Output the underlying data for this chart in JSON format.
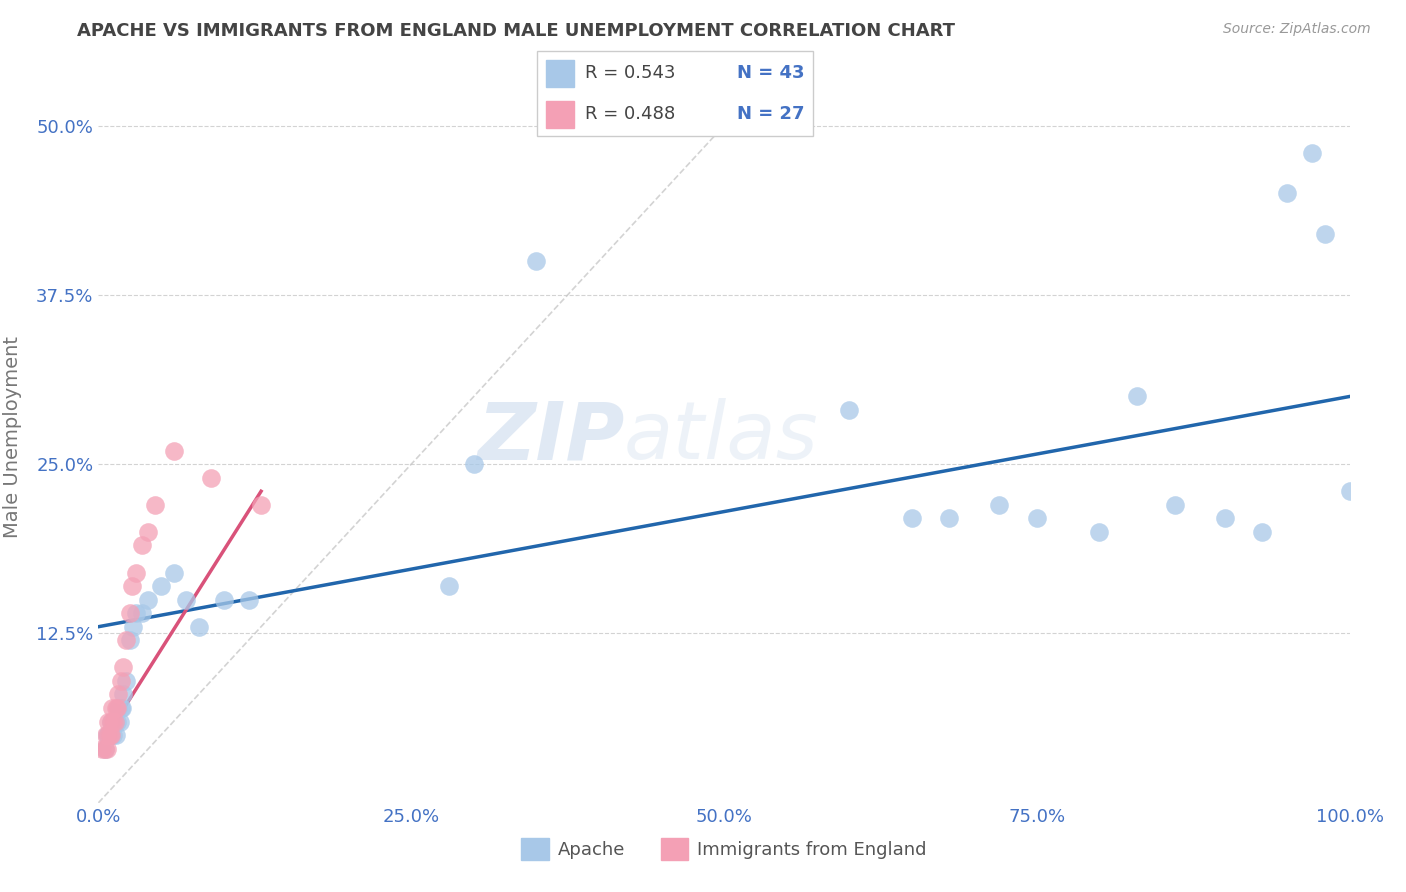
{
  "title": "APACHE VS IMMIGRANTS FROM ENGLAND MALE UNEMPLOYMENT CORRELATION CHART",
  "source": "Source: ZipAtlas.com",
  "ylabel": "Male Unemployment",
  "watermark": "ZIPatlas",
  "legend_bottom": [
    "Apache",
    "Immigrants from England"
  ],
  "legend_top": {
    "R1": "R = 0.543",
    "N1": "N = 43",
    "R2": "R = 0.488",
    "N2": "N = 27"
  },
  "xlim": [
    0.0,
    1.0
  ],
  "ylim": [
    0.0,
    0.54
  ],
  "xticks": [
    0.0,
    0.25,
    0.5,
    0.75,
    1.0
  ],
  "xticklabels": [
    "0.0%",
    "25.0%",
    "50.0%",
    "75.0%",
    "100.0%"
  ],
  "yticks": [
    0.125,
    0.25,
    0.375,
    0.5
  ],
  "yticklabels": [
    "12.5%",
    "25.0%",
    "37.5%",
    "50.0%"
  ],
  "color_blue": "#a8c8e8",
  "color_pink": "#f4a0b5",
  "color_blue_line": "#2166ac",
  "color_pink_line": "#d9527a",
  "color_diag": "#c8c8c8",
  "apache_x": [
    0.005,
    0.007,
    0.008,
    0.01,
    0.01,
    0.012,
    0.013,
    0.014,
    0.015,
    0.016,
    0.017,
    0.018,
    0.019,
    0.02,
    0.022,
    0.025,
    0.028,
    0.03,
    0.035,
    0.04,
    0.05,
    0.06,
    0.07,
    0.08,
    0.1,
    0.12,
    0.28,
    0.3,
    0.35,
    0.6,
    0.65,
    0.68,
    0.72,
    0.75,
    0.8,
    0.83,
    0.86,
    0.9,
    0.93,
    0.95,
    0.97,
    0.98,
    1.0
  ],
  "apache_y": [
    0.04,
    0.05,
    0.05,
    0.05,
    0.06,
    0.05,
    0.06,
    0.05,
    0.06,
    0.07,
    0.06,
    0.07,
    0.07,
    0.08,
    0.09,
    0.12,
    0.13,
    0.14,
    0.14,
    0.15,
    0.16,
    0.17,
    0.15,
    0.13,
    0.15,
    0.15,
    0.16,
    0.25,
    0.4,
    0.29,
    0.21,
    0.21,
    0.22,
    0.21,
    0.2,
    0.3,
    0.22,
    0.21,
    0.2,
    0.45,
    0.48,
    0.42,
    0.23
  ],
  "england_x": [
    0.003,
    0.005,
    0.006,
    0.007,
    0.008,
    0.008,
    0.009,
    0.01,
    0.01,
    0.011,
    0.012,
    0.013,
    0.014,
    0.015,
    0.016,
    0.018,
    0.02,
    0.022,
    0.025,
    0.027,
    0.03,
    0.035,
    0.04,
    0.045,
    0.06,
    0.09,
    0.13
  ],
  "england_y": [
    0.04,
    0.04,
    0.05,
    0.04,
    0.05,
    0.06,
    0.05,
    0.05,
    0.06,
    0.07,
    0.06,
    0.06,
    0.07,
    0.07,
    0.08,
    0.09,
    0.1,
    0.12,
    0.14,
    0.16,
    0.17,
    0.19,
    0.2,
    0.22,
    0.26,
    0.24,
    0.22
  ],
  "blue_line_x": [
    0.0,
    1.0
  ],
  "blue_line_y": [
    0.13,
    0.3
  ],
  "pink_line_x": [
    0.0,
    0.13
  ],
  "pink_line_y": [
    0.04,
    0.23
  ],
  "background_color": "#ffffff",
  "grid_color": "#c8c8c8"
}
